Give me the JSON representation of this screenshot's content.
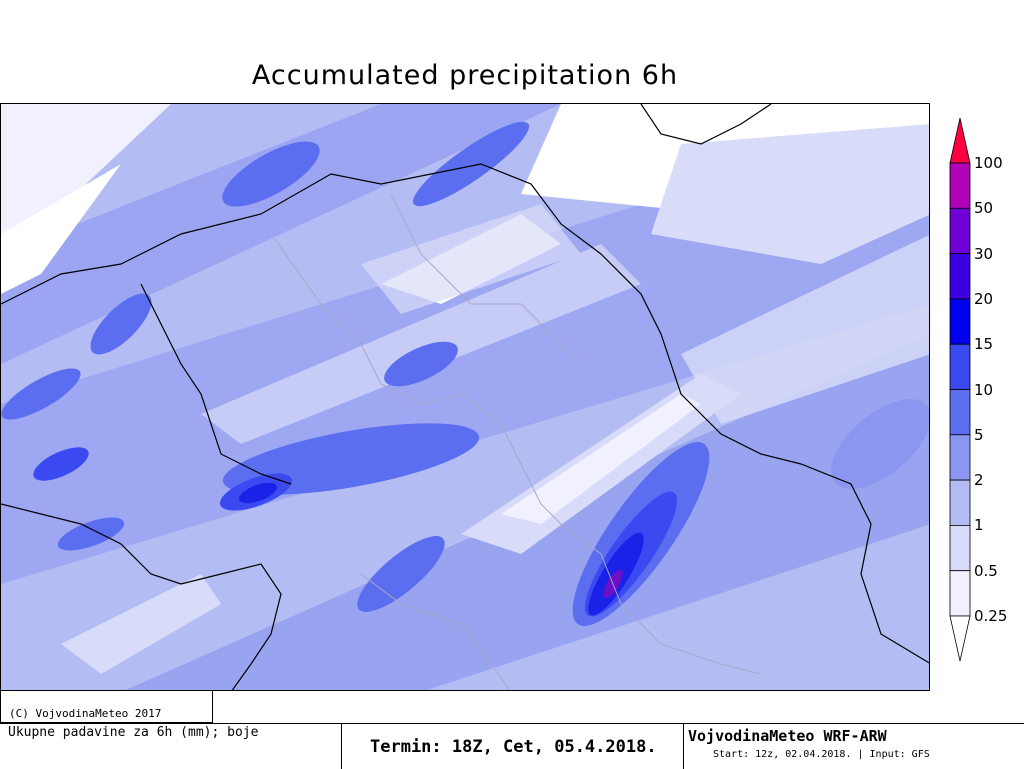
{
  "title": "Accumulated precipitation 6h",
  "legend": {
    "levels": [
      "100",
      "50",
      "30",
      "20",
      "15",
      "10",
      "5",
      "2",
      "1",
      "0.5",
      "0.25"
    ],
    "colors": [
      "#ff0040",
      "#b000b8",
      "#7000d8",
      "#3a00e0",
      "#0000f0",
      "#3a4af0",
      "#5c6ef0",
      "#8a96f0",
      "#b4bcf4",
      "#d8dcf8",
      "#f0f0ff"
    ]
  },
  "copyright": "(C) VojvodinaMeteo 2017",
  "footer": {
    "description": "Ukupne padavine za 6h (mm); boje",
    "term": "Termin: 18Z, Cet, 05.4.2018.",
    "model": "VojvodinaMeteo WRF-ARW",
    "start": "Start: 12z, 02.04.2018. | Input: GFS"
  }
}
